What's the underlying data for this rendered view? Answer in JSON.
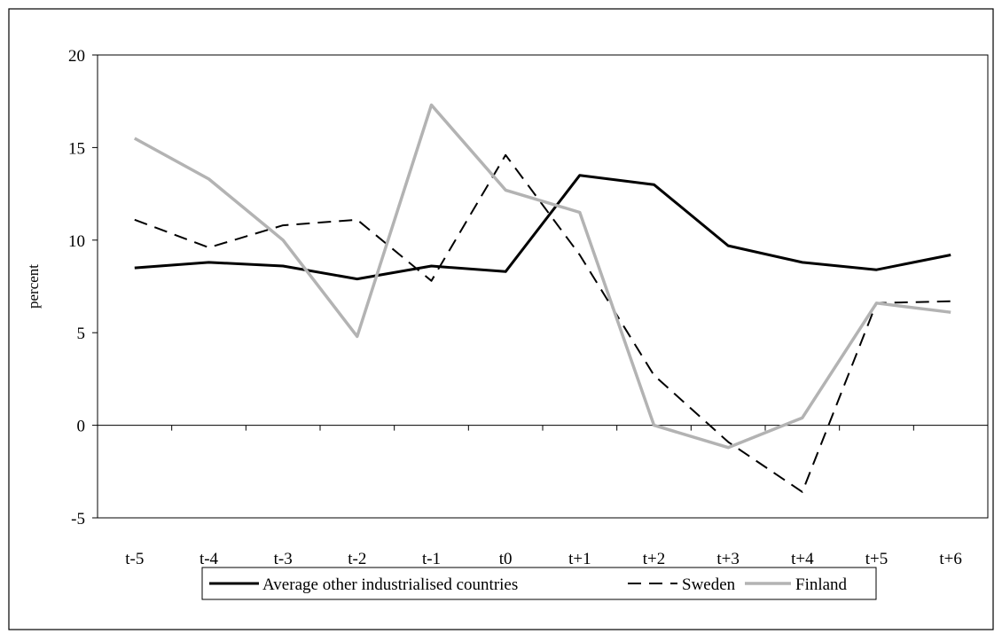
{
  "chart_data": {
    "type": "line",
    "title": "",
    "xlabel": "",
    "ylabel": "percent",
    "ylim": [
      -5,
      20
    ],
    "yticks": [
      -5,
      0,
      5,
      10,
      15,
      20
    ],
    "ytick_labels": [
      "-5",
      "0",
      "5",
      "10",
      "15",
      "20"
    ],
    "categories": [
      "t-5",
      "t-4",
      "t-3",
      "t-2",
      "t-1",
      "t0",
      "t+1",
      "t+2",
      "t+3",
      "t+4",
      "t+5",
      "t+6"
    ],
    "grid": false,
    "legend_position": "bottom",
    "series": [
      {
        "name": "Average other industrialised countries",
        "values": [
          8.5,
          8.8,
          8.6,
          7.9,
          8.6,
          8.3,
          13.5,
          13.0,
          9.7,
          8.8,
          8.4,
          9.2
        ],
        "color": "#000000",
        "style": "solid"
      },
      {
        "name": "Sweden",
        "values": [
          11.1,
          9.6,
          10.8,
          11.1,
          7.8,
          14.6,
          9.2,
          2.7,
          -0.9,
          -3.6,
          6.6,
          6.7
        ],
        "color": "#000000",
        "style": "dashed"
      },
      {
        "name": "Finland",
        "values": [
          15.5,
          13.3,
          10.0,
          4.8,
          17.3,
          12.7,
          11.5,
          0.0,
          -1.2,
          0.4,
          6.6,
          6.1
        ],
        "color": "#b3b3b3",
        "style": "solid"
      }
    ]
  }
}
